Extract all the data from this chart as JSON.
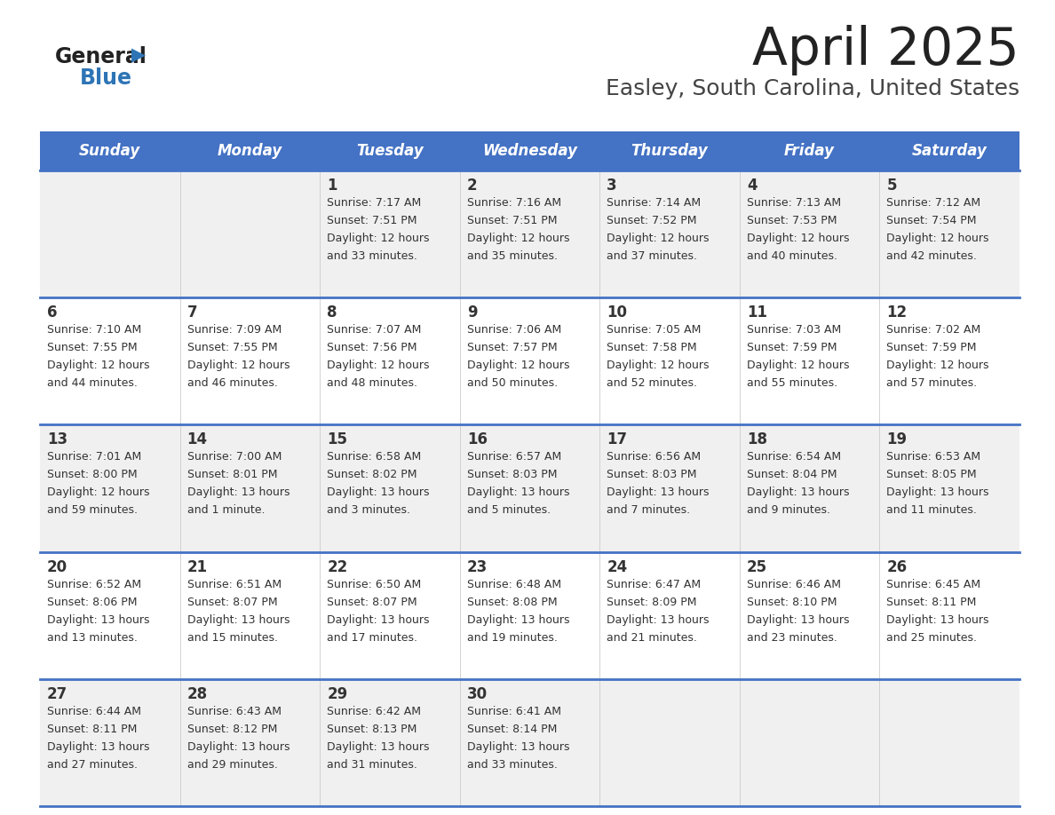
{
  "title": "April 2025",
  "subtitle": "Easley, South Carolina, United States",
  "header_bg": "#4472C4",
  "header_text_color": "#FFFFFF",
  "days_of_week": [
    "Sunday",
    "Monday",
    "Tuesday",
    "Wednesday",
    "Thursday",
    "Friday",
    "Saturday"
  ],
  "row_bg_odd": "#F0F0F0",
  "row_bg_even": "#FFFFFF",
  "cell_text_color": "#333333",
  "grid_line_color": "#4472C4",
  "calendar_data": [
    [
      {
        "day": "",
        "sunrise": "",
        "sunset": "",
        "daylight": ""
      },
      {
        "day": "",
        "sunrise": "",
        "sunset": "",
        "daylight": ""
      },
      {
        "day": "1",
        "sunrise": "Sunrise: 7:17 AM",
        "sunset": "Sunset: 7:51 PM",
        "daylight": "Daylight: 12 hours\nand 33 minutes."
      },
      {
        "day": "2",
        "sunrise": "Sunrise: 7:16 AM",
        "sunset": "Sunset: 7:51 PM",
        "daylight": "Daylight: 12 hours\nand 35 minutes."
      },
      {
        "day": "3",
        "sunrise": "Sunrise: 7:14 AM",
        "sunset": "Sunset: 7:52 PM",
        "daylight": "Daylight: 12 hours\nand 37 minutes."
      },
      {
        "day": "4",
        "sunrise": "Sunrise: 7:13 AM",
        "sunset": "Sunset: 7:53 PM",
        "daylight": "Daylight: 12 hours\nand 40 minutes."
      },
      {
        "day": "5",
        "sunrise": "Sunrise: 7:12 AM",
        "sunset": "Sunset: 7:54 PM",
        "daylight": "Daylight: 12 hours\nand 42 minutes."
      }
    ],
    [
      {
        "day": "6",
        "sunrise": "Sunrise: 7:10 AM",
        "sunset": "Sunset: 7:55 PM",
        "daylight": "Daylight: 12 hours\nand 44 minutes."
      },
      {
        "day": "7",
        "sunrise": "Sunrise: 7:09 AM",
        "sunset": "Sunset: 7:55 PM",
        "daylight": "Daylight: 12 hours\nand 46 minutes."
      },
      {
        "day": "8",
        "sunrise": "Sunrise: 7:07 AM",
        "sunset": "Sunset: 7:56 PM",
        "daylight": "Daylight: 12 hours\nand 48 minutes."
      },
      {
        "day": "9",
        "sunrise": "Sunrise: 7:06 AM",
        "sunset": "Sunset: 7:57 PM",
        "daylight": "Daylight: 12 hours\nand 50 minutes."
      },
      {
        "day": "10",
        "sunrise": "Sunrise: 7:05 AM",
        "sunset": "Sunset: 7:58 PM",
        "daylight": "Daylight: 12 hours\nand 52 minutes."
      },
      {
        "day": "11",
        "sunrise": "Sunrise: 7:03 AM",
        "sunset": "Sunset: 7:59 PM",
        "daylight": "Daylight: 12 hours\nand 55 minutes."
      },
      {
        "day": "12",
        "sunrise": "Sunrise: 7:02 AM",
        "sunset": "Sunset: 7:59 PM",
        "daylight": "Daylight: 12 hours\nand 57 minutes."
      }
    ],
    [
      {
        "day": "13",
        "sunrise": "Sunrise: 7:01 AM",
        "sunset": "Sunset: 8:00 PM",
        "daylight": "Daylight: 12 hours\nand 59 minutes."
      },
      {
        "day": "14",
        "sunrise": "Sunrise: 7:00 AM",
        "sunset": "Sunset: 8:01 PM",
        "daylight": "Daylight: 13 hours\nand 1 minute."
      },
      {
        "day": "15",
        "sunrise": "Sunrise: 6:58 AM",
        "sunset": "Sunset: 8:02 PM",
        "daylight": "Daylight: 13 hours\nand 3 minutes."
      },
      {
        "day": "16",
        "sunrise": "Sunrise: 6:57 AM",
        "sunset": "Sunset: 8:03 PM",
        "daylight": "Daylight: 13 hours\nand 5 minutes."
      },
      {
        "day": "17",
        "sunrise": "Sunrise: 6:56 AM",
        "sunset": "Sunset: 8:03 PM",
        "daylight": "Daylight: 13 hours\nand 7 minutes."
      },
      {
        "day": "18",
        "sunrise": "Sunrise: 6:54 AM",
        "sunset": "Sunset: 8:04 PM",
        "daylight": "Daylight: 13 hours\nand 9 minutes."
      },
      {
        "day": "19",
        "sunrise": "Sunrise: 6:53 AM",
        "sunset": "Sunset: 8:05 PM",
        "daylight": "Daylight: 13 hours\nand 11 minutes."
      }
    ],
    [
      {
        "day": "20",
        "sunrise": "Sunrise: 6:52 AM",
        "sunset": "Sunset: 8:06 PM",
        "daylight": "Daylight: 13 hours\nand 13 minutes."
      },
      {
        "day": "21",
        "sunrise": "Sunrise: 6:51 AM",
        "sunset": "Sunset: 8:07 PM",
        "daylight": "Daylight: 13 hours\nand 15 minutes."
      },
      {
        "day": "22",
        "sunrise": "Sunrise: 6:50 AM",
        "sunset": "Sunset: 8:07 PM",
        "daylight": "Daylight: 13 hours\nand 17 minutes."
      },
      {
        "day": "23",
        "sunrise": "Sunrise: 6:48 AM",
        "sunset": "Sunset: 8:08 PM",
        "daylight": "Daylight: 13 hours\nand 19 minutes."
      },
      {
        "day": "24",
        "sunrise": "Sunrise: 6:47 AM",
        "sunset": "Sunset: 8:09 PM",
        "daylight": "Daylight: 13 hours\nand 21 minutes."
      },
      {
        "day": "25",
        "sunrise": "Sunrise: 6:46 AM",
        "sunset": "Sunset: 8:10 PM",
        "daylight": "Daylight: 13 hours\nand 23 minutes."
      },
      {
        "day": "26",
        "sunrise": "Sunrise: 6:45 AM",
        "sunset": "Sunset: 8:11 PM",
        "daylight": "Daylight: 13 hours\nand 25 minutes."
      }
    ],
    [
      {
        "day": "27",
        "sunrise": "Sunrise: 6:44 AM",
        "sunset": "Sunset: 8:11 PM",
        "daylight": "Daylight: 13 hours\nand 27 minutes."
      },
      {
        "day": "28",
        "sunrise": "Sunrise: 6:43 AM",
        "sunset": "Sunset: 8:12 PM",
        "daylight": "Daylight: 13 hours\nand 29 minutes."
      },
      {
        "day": "29",
        "sunrise": "Sunrise: 6:42 AM",
        "sunset": "Sunset: 8:13 PM",
        "daylight": "Daylight: 13 hours\nand 31 minutes."
      },
      {
        "day": "30",
        "sunrise": "Sunrise: 6:41 AM",
        "sunset": "Sunset: 8:14 PM",
        "daylight": "Daylight: 13 hours\nand 33 minutes."
      },
      {
        "day": "",
        "sunrise": "",
        "sunset": "",
        "daylight": ""
      },
      {
        "day": "",
        "sunrise": "",
        "sunset": "",
        "daylight": ""
      },
      {
        "day": "",
        "sunrise": "",
        "sunset": "",
        "daylight": ""
      }
    ]
  ],
  "logo_general_color": "#222222",
  "logo_blue_color": "#2E75B6",
  "title_color": "#222222",
  "subtitle_color": "#444444"
}
